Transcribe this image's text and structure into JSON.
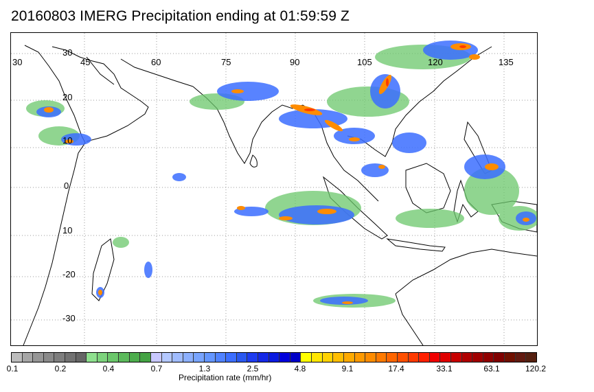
{
  "title": "20160803 IMERG Precipitation ending at 01:59:59 Z",
  "map": {
    "longitude_labels": [
      "30",
      "45",
      "60",
      "75",
      "90",
      "105",
      "120",
      "135"
    ],
    "latitude_labels": [
      "30",
      "20",
      "10",
      "0",
      "10",
      "-20",
      "-30"
    ],
    "grid": "dotted"
  },
  "colorbar": {
    "colors": [
      "#bcbcbc",
      "#a6a6a6",
      "#969696",
      "#8a8a8a",
      "#7e7e7e",
      "#727272",
      "#666666",
      "#8ee08e",
      "#7cd37c",
      "#6bc76b",
      "#5cba5c",
      "#4dad4d",
      "#44a344",
      "#c8c8ff",
      "#b4c8ff",
      "#a0bcff",
      "#8cb0ff",
      "#78a4ff",
      "#6496ff",
      "#5082ff",
      "#3c6eff",
      "#2a58f0",
      "#1e3cf0",
      "#1428e6",
      "#0a1ae0",
      "#0000dc",
      "#0000c8",
      "#ffff00",
      "#ffe600",
      "#ffd200",
      "#ffbe00",
      "#ffaa00",
      "#ff9a00",
      "#ff8c00",
      "#ff7a00",
      "#ff6600",
      "#ff5000",
      "#ff3a00",
      "#ff2000",
      "#f00000",
      "#e00000",
      "#c80000",
      "#b00000",
      "#a00000",
      "#900000",
      "#800000",
      "#701000",
      "#621a10",
      "#552010"
    ],
    "tick_labels": [
      "0.1",
      "0.2",
      "0.4",
      "0.7",
      "1.3",
      "2.5",
      "4.8",
      "9.1",
      "17.4",
      "33.1",
      "63.1",
      "120.2"
    ],
    "label": "Precipitation rate (mm/hr)"
  }
}
